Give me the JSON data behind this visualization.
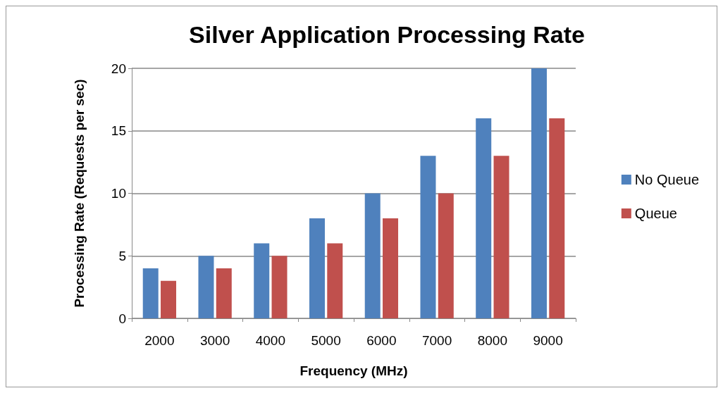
{
  "chart_data": {
    "type": "bar",
    "title": "Silver Application Processing Rate",
    "xlabel": "Frequency (MHz)",
    "ylabel": "Processing Rate (Requests per sec)",
    "categories": [
      "2000",
      "3000",
      "4000",
      "5000",
      "6000",
      "7000",
      "8000",
      "9000"
    ],
    "series": [
      {
        "name": "No Queue",
        "color": "#4f81bd",
        "values": [
          4,
          5,
          6,
          8,
          10,
          13,
          16,
          20
        ]
      },
      {
        "name": "Queue",
        "color": "#c0504d",
        "values": [
          3,
          4,
          5,
          6,
          8,
          10,
          13,
          16
        ]
      }
    ],
    "ylim": [
      0,
      20
    ],
    "yticks": [
      0,
      5,
      10,
      15,
      20
    ],
    "grid": "y",
    "legend": "right"
  }
}
